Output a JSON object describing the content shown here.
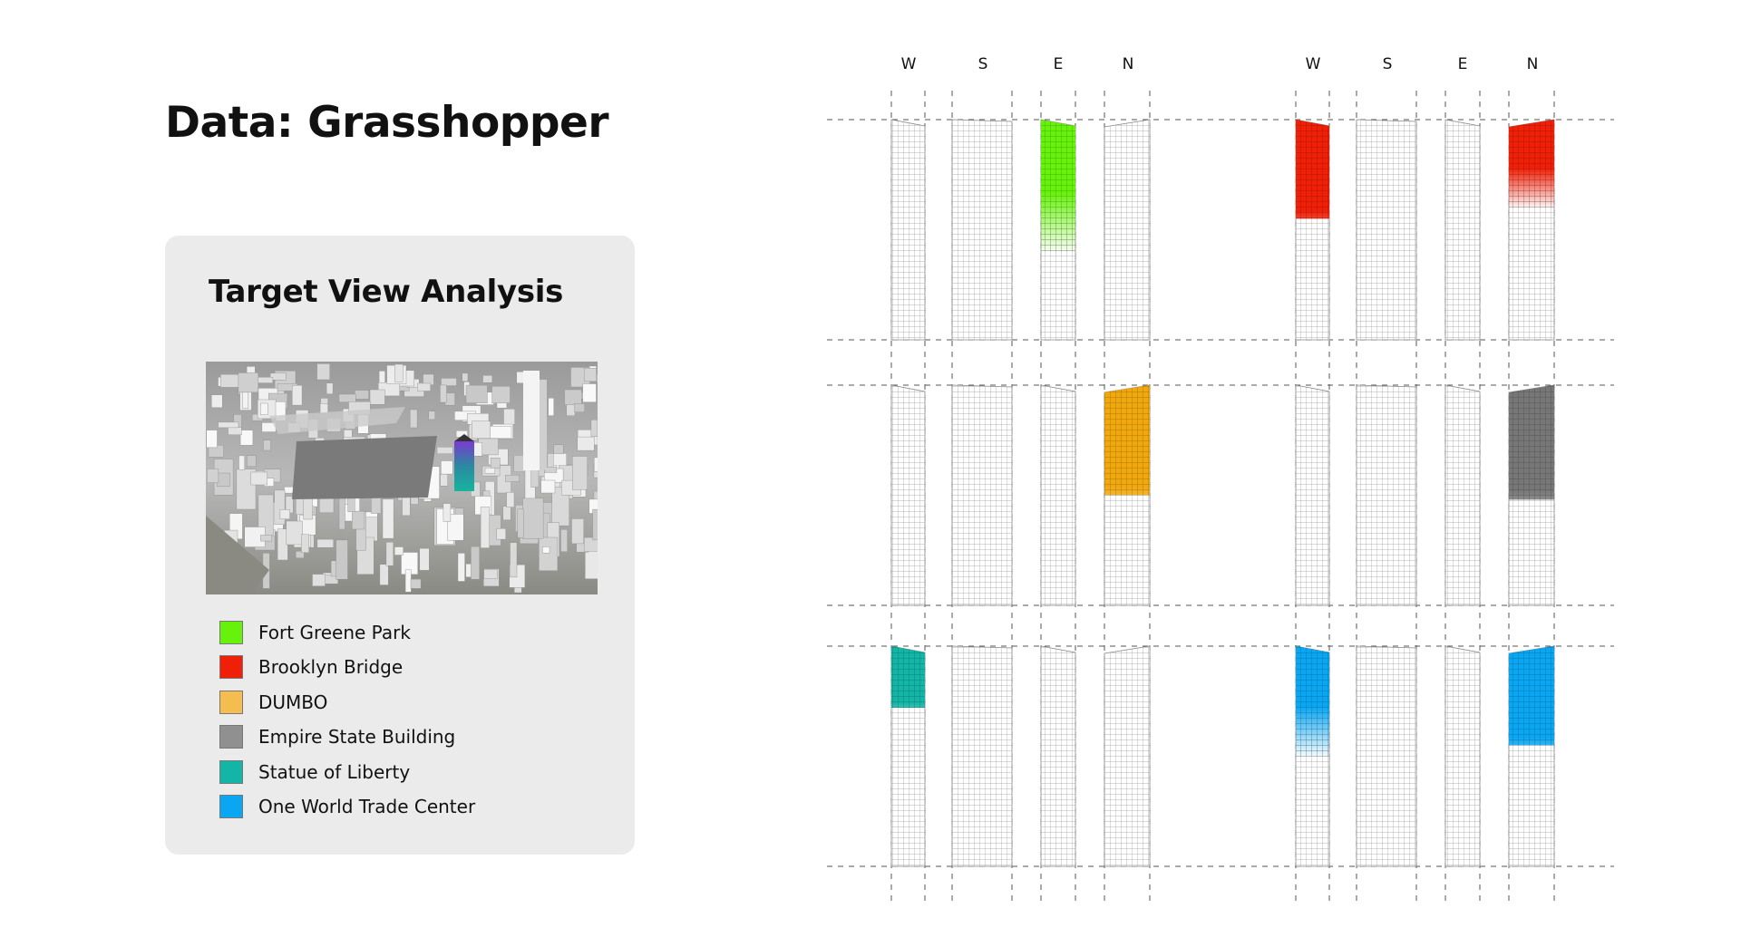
{
  "title": "Data: Grasshopper",
  "card": {
    "title": "Target View Analysis",
    "legend": [
      {
        "label": "Fort Greene Park",
        "color": "#66f20a"
      },
      {
        "label": "Brooklyn Bridge",
        "color": "#f01f07"
      },
      {
        "label": "DUMBO",
        "color": "#f5bd4f"
      },
      {
        "label": "Empire State Building",
        "color": "#909090"
      },
      {
        "label": "Statue of Liberty",
        "color": "#12b5a6"
      },
      {
        "label": "One World Trade Center",
        "color": "#0aa6f2"
      }
    ]
  },
  "diagram": {
    "direction_labels": [
      "W",
      "S",
      "E",
      "N",
      "W",
      "S",
      "E",
      "N"
    ],
    "panels": [
      {
        "target": "Fort Greene Park",
        "color": "#66f20a",
        "facade": "E",
        "coverage": 0.6,
        "fade": true
      },
      {
        "target": "Brooklyn Bridge",
        "color": "#f01f07",
        "facade": "W",
        "coverage": 0.45,
        "fade": false
      },
      {
        "target": "Brooklyn Bridge",
        "color": "#f01f07",
        "facade": "N",
        "coverage": 0.4,
        "fade": true
      },
      {
        "target": "DUMBO",
        "color": "#f0a80e",
        "facade": "N",
        "coverage": 0.5,
        "fade": false
      },
      {
        "target": "Empire State Building",
        "color": "#777777",
        "facade": "N",
        "coverage": 0.52,
        "fade": false
      },
      {
        "target": "Statue of Liberty",
        "color": "#12b5a6",
        "facade": "W",
        "coverage": 0.28,
        "fade": false
      },
      {
        "target": "One World Trade Center",
        "color": "#0aa6f2",
        "facade": "W",
        "coverage": 0.5,
        "fade": true
      },
      {
        "target": "One World Trade Center",
        "color": "#0aa6f2",
        "facade": "N",
        "coverage": 0.45,
        "fade": false
      }
    ]
  }
}
